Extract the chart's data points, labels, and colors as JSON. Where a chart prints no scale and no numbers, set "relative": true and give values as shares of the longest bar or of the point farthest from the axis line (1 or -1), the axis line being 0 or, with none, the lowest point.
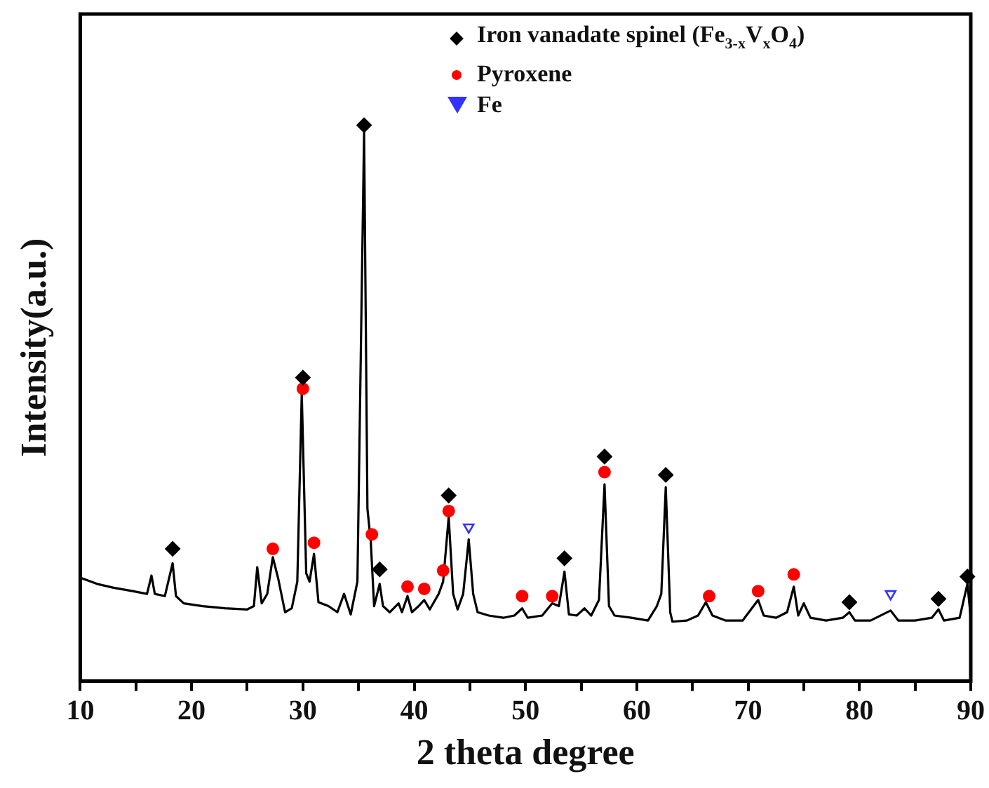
{
  "chart_data": {
    "type": "line",
    "xlabel": "2 theta degree",
    "ylabel": "Intensity(a.u.)",
    "relative": true,
    "legend": "top right",
    "xlim": [
      10,
      90
    ],
    "xticks": [
      10,
      {
        "value": 15,
        "label": null
      },
      20,
      {
        "value": 25,
        "label": null
      },
      30,
      {
        "value": 35,
        "label": null
      },
      40,
      {
        "value": 45,
        "label": null
      },
      50,
      {
        "value": 55,
        "label": null
      },
      60,
      {
        "value": 65,
        "label": null
      },
      70,
      {
        "value": 75,
        "label": null
      },
      80,
      {
        "value": 85,
        "label": null
      },
      90
    ],
    "series": [
      {
        "type": "line",
        "color": "#000000",
        "marker": "none",
        "x": [
          10.0,
          11.5,
          13.0,
          14.7,
          16.0,
          16.4,
          16.7,
          17.6,
          18.3,
          18.6,
          19.3,
          21.0,
          23.0,
          25.0,
          25.6,
          25.9,
          26.3,
          26.8,
          27.3,
          27.8,
          28.4,
          29.0,
          29.5,
          29.9,
          30.3,
          30.6,
          31.0,
          31.4,
          32.3,
          33.1,
          33.7,
          34.3,
          34.9,
          35.5,
          35.8,
          36.1,
          36.4,
          36.9,
          37.2,
          37.8,
          38.6,
          38.9,
          39.4,
          39.8,
          40.4,
          40.9,
          41.4,
          42.2,
          42.6,
          43.1,
          43.5,
          43.9,
          44.4,
          44.9,
          45.3,
          45.7,
          46.7,
          48.0,
          49.0,
          49.7,
          50.2,
          51.5,
          52.4,
          53.0,
          53.5,
          53.9,
          54.6,
          55.3,
          55.9,
          56.6,
          57.1,
          57.5,
          58.0,
          59.5,
          61.0,
          61.8,
          62.2,
          62.6,
          63.0,
          63.2,
          64.5,
          65.5,
          66.2,
          66.8,
          68.0,
          69.5,
          70.9,
          71.4,
          72.5,
          73.5,
          74.1,
          74.5,
          75.0,
          75.6,
          77.0,
          78.5,
          79.1,
          79.6,
          81.0,
          82.8,
          83.5,
          85.0,
          86.5,
          87.1,
          87.6,
          89.0,
          89.7,
          90.0
        ],
        "values": [
          0.186,
          0.175,
          0.168,
          0.162,
          0.157,
          0.19,
          0.157,
          0.153,
          0.212,
          0.153,
          0.14,
          0.135,
          0.131,
          0.129,
          0.135,
          0.205,
          0.14,
          0.157,
          0.223,
          0.183,
          0.124,
          0.131,
          0.179,
          0.517,
          0.194,
          0.179,
          0.229,
          0.142,
          0.135,
          0.124,
          0.157,
          0.12,
          0.179,
          0.987,
          0.31,
          0.251,
          0.135,
          0.175,
          0.135,
          0.124,
          0.14,
          0.124,
          0.153,
          0.124,
          0.135,
          0.146,
          0.129,
          0.157,
          0.179,
          0.295,
          0.157,
          0.129,
          0.157,
          0.255,
          0.157,
          0.124,
          0.118,
          0.114,
          0.118,
          0.131,
          0.114,
          0.118,
          0.14,
          0.135,
          0.197,
          0.12,
          0.118,
          0.131,
          0.118,
          0.146,
          0.354,
          0.135,
          0.118,
          0.114,
          0.109,
          0.135,
          0.157,
          0.349,
          0.124,
          0.107,
          0.109,
          0.118,
          0.142,
          0.118,
          0.109,
          0.109,
          0.146,
          0.118,
          0.114,
          0.124,
          0.17,
          0.118,
          0.14,
          0.114,
          0.109,
          0.114,
          0.124,
          0.109,
          0.109,
          0.127,
          0.109,
          0.109,
          0.114,
          0.129,
          0.109,
          0.114,
          0.175,
          0.114
        ]
      },
      {
        "type": "scatter",
        "name": "Iron vanadate spinel (Fe$_{3-}$$_{x}$V$_{x}$O$_{4}$)",
        "color": "#000000",
        "marker": "diamond",
        "x": [
          18.3,
          30.0,
          35.5,
          36.9,
          43.1,
          53.5,
          57.1,
          62.6,
          79.1,
          87.1,
          89.7
        ],
        "values": [
          0.238,
          0.546,
          1,
          0.201,
          0.334,
          0.221,
          0.404,
          0.371,
          0.142,
          0.148,
          0.188
        ]
      },
      {
        "type": "scatter",
        "name": "Pyroxene",
        "color": "#ff0000",
        "marker": "circle",
        "x": [
          27.3,
          30.0,
          31.0,
          36.2,
          39.4,
          40.9,
          42.6,
          43.1,
          49.7,
          52.4,
          57.1,
          66.5,
          70.9,
          74.1
        ],
        "values": [
          0.238,
          0.526,
          0.249,
          0.264,
          0.17,
          0.166,
          0.199,
          0.306,
          0.153,
          0.153,
          0.376,
          0.153,
          0.162,
          0.192
        ]
      },
      {
        "type": "scatter",
        "name": "Fe",
        "color": "#3333ff",
        "marker": "triangle",
        "x": [
          44.9,
          82.8
        ],
        "values": [
          0.277,
          0.157
        ]
      }
    ]
  }
}
